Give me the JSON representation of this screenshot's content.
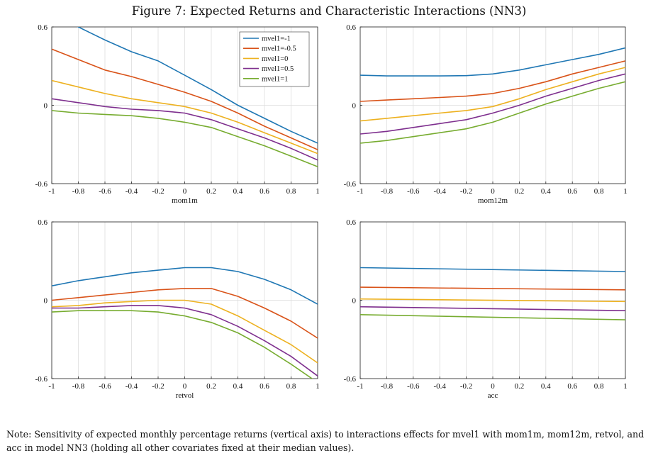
{
  "figure_title": "Figure 7: Expected Returns and Characteristic Interactions (NN3)",
  "note": "Note: Sensitivity of expected monthly percentage returns (vertical axis) to interactions effects for mvel1 with mom1m, mom12m, retvol, and acc in model NN3 (holding all other covariates fixed at their median values).",
  "colors": {
    "mvel1=-1": "#1f77b4",
    "mvel1=-0.5": "#d95319",
    "mvel1=0": "#edb120",
    "mvel1=0.5": "#7e2f8e",
    "mvel1=1": "#77ac30",
    "grid": "#dddddd",
    "axis": "#222222"
  },
  "chart_data": [
    {
      "type": "line",
      "xlabel": "mom1m",
      "ylabel": "",
      "xlim": [
        -1,
        1
      ],
      "ylim": [
        -0.6,
        0.6
      ],
      "x_ticks": [
        "-1",
        "-0.8",
        "-0.6",
        "-0.4",
        "-0.2",
        "0",
        "0.2",
        "0.4",
        "0.6",
        "0.8",
        "1"
      ],
      "y_ticks": [
        "-0.6",
        "0",
        "0.6"
      ],
      "grid": true,
      "legend_position": "top-right",
      "x": [
        -1,
        -0.8,
        -0.6,
        -0.4,
        -0.2,
        0,
        0.2,
        0.4,
        0.6,
        0.8,
        1
      ],
      "series": [
        {
          "name": "mvel1=-1",
          "values": [
            0.7,
            0.6,
            0.5,
            0.41,
            0.34,
            0.23,
            0.12,
            0.0,
            -0.1,
            -0.2,
            -0.29
          ]
        },
        {
          "name": "mvel1=-0.5",
          "values": [
            0.43,
            0.35,
            0.27,
            0.22,
            0.16,
            0.1,
            0.03,
            -0.06,
            -0.16,
            -0.25,
            -0.34
          ]
        },
        {
          "name": "mvel1=0",
          "values": [
            0.19,
            0.14,
            0.09,
            0.05,
            0.02,
            -0.01,
            -0.06,
            -0.13,
            -0.21,
            -0.29,
            -0.37
          ]
        },
        {
          "name": "mvel1=0.5",
          "values": [
            0.05,
            0.02,
            -0.01,
            -0.03,
            -0.04,
            -0.06,
            -0.11,
            -0.18,
            -0.25,
            -0.33,
            -0.42
          ]
        },
        {
          "name": "mvel1=1",
          "values": [
            -0.04,
            -0.06,
            -0.07,
            -0.08,
            -0.1,
            -0.13,
            -0.17,
            -0.24,
            -0.31,
            -0.39,
            -0.47
          ]
        }
      ]
    },
    {
      "type": "line",
      "xlabel": "mom12m",
      "ylabel": "",
      "xlim": [
        -1,
        1
      ],
      "ylim": [
        -0.6,
        0.6
      ],
      "x_ticks": [
        "-1",
        "-0.8",
        "-0.6",
        "-0.4",
        "-0.2",
        "0",
        "0.2",
        "0.4",
        "0.6",
        "0.8",
        "1"
      ],
      "y_ticks": [
        "-0.6",
        "0",
        "0.6"
      ],
      "grid": true,
      "x": [
        -1,
        -0.8,
        -0.6,
        -0.4,
        -0.2,
        0,
        0.2,
        0.4,
        0.6,
        0.8,
        1
      ],
      "series": [
        {
          "name": "mvel1=-1",
          "values": [
            0.23,
            0.225,
            0.225,
            0.225,
            0.227,
            0.24,
            0.27,
            0.31,
            0.35,
            0.39,
            0.44
          ]
        },
        {
          "name": "mvel1=-0.5",
          "values": [
            0.03,
            0.04,
            0.05,
            0.06,
            0.07,
            0.09,
            0.13,
            0.18,
            0.24,
            0.29,
            0.34
          ]
        },
        {
          "name": "mvel1=0",
          "values": [
            -0.12,
            -0.1,
            -0.08,
            -0.06,
            -0.04,
            -0.01,
            0.05,
            0.12,
            0.18,
            0.24,
            0.29
          ]
        },
        {
          "name": "mvel1=0.5",
          "values": [
            -0.22,
            -0.2,
            -0.17,
            -0.14,
            -0.11,
            -0.06,
            0.0,
            0.07,
            0.13,
            0.19,
            0.24
          ]
        },
        {
          "name": "mvel1=1",
          "values": [
            -0.29,
            -0.27,
            -0.24,
            -0.21,
            -0.18,
            -0.13,
            -0.06,
            0.01,
            0.07,
            0.13,
            0.18
          ]
        }
      ]
    },
    {
      "type": "line",
      "xlabel": "retvol",
      "ylabel": "",
      "xlim": [
        -1,
        1
      ],
      "ylim": [
        -0.6,
        0.6
      ],
      "x_ticks": [
        "-1",
        "-0.8",
        "-0.6",
        "-0.4",
        "-0.2",
        "0",
        "0.2",
        "0.4",
        "0.6",
        "0.8",
        "1"
      ],
      "y_ticks": [
        "-0.6",
        "0",
        "0.6"
      ],
      "grid": true,
      "x": [
        -1,
        -0.8,
        -0.6,
        -0.4,
        -0.2,
        0,
        0.2,
        0.4,
        0.6,
        0.8,
        1
      ],
      "series": [
        {
          "name": "mvel1=-1",
          "values": [
            0.11,
            0.15,
            0.18,
            0.21,
            0.23,
            0.25,
            0.25,
            0.22,
            0.16,
            0.08,
            -0.03
          ]
        },
        {
          "name": "mvel1=-0.5",
          "values": [
            0.0,
            0.02,
            0.04,
            0.06,
            0.08,
            0.09,
            0.09,
            0.03,
            -0.06,
            -0.16,
            -0.29
          ]
        },
        {
          "name": "mvel1=0",
          "values": [
            -0.05,
            -0.04,
            -0.02,
            -0.01,
            0.0,
            0.0,
            -0.03,
            -0.12,
            -0.23,
            -0.34,
            -0.48
          ]
        },
        {
          "name": "mvel1=0.5",
          "values": [
            -0.06,
            -0.06,
            -0.05,
            -0.04,
            -0.04,
            -0.06,
            -0.11,
            -0.2,
            -0.31,
            -0.43,
            -0.58
          ]
        },
        {
          "name": "mvel1=1",
          "values": [
            -0.09,
            -0.08,
            -0.08,
            -0.08,
            -0.09,
            -0.12,
            -0.17,
            -0.25,
            -0.36,
            -0.49,
            -0.63
          ]
        }
      ]
    },
    {
      "type": "line",
      "xlabel": "acc",
      "ylabel": "",
      "xlim": [
        -1,
        1
      ],
      "ylim": [
        -0.6,
        0.6
      ],
      "x_ticks": [
        "-1",
        "-0.8",
        "-0.6",
        "-0.4",
        "-0.2",
        "0",
        "0.2",
        "0.4",
        "0.6",
        "0.8",
        "1"
      ],
      "y_ticks": [
        "-0.6",
        "0",
        "0.6"
      ],
      "grid": true,
      "x": [
        -1,
        1
      ],
      "series": [
        {
          "name": "mvel1=-1",
          "values": [
            0.25,
            0.22
          ]
        },
        {
          "name": "mvel1=-0.5",
          "values": [
            0.1,
            0.08
          ]
        },
        {
          "name": "mvel1=0",
          "values": [
            0.01,
            -0.01
          ]
        },
        {
          "name": "mvel1=0.5",
          "values": [
            -0.05,
            -0.08
          ]
        },
        {
          "name": "mvel1=1",
          "values": [
            -0.11,
            -0.15
          ]
        }
      ]
    }
  ]
}
